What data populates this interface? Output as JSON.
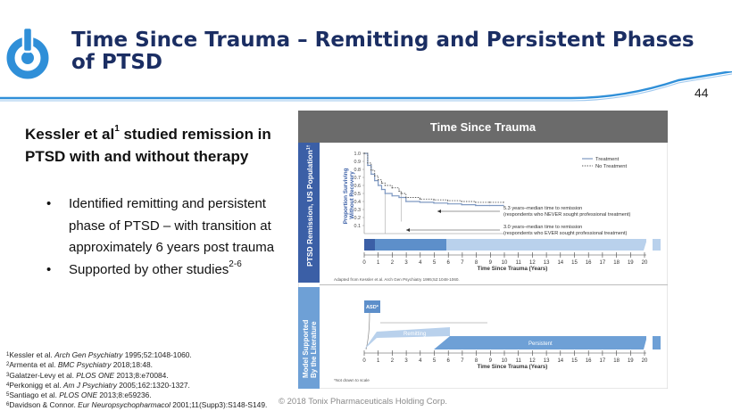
{
  "header": {
    "title": "Time Since Trauma – Remitting and Persistent Phases of PTSD",
    "page_number": "44"
  },
  "body": {
    "lead_parts": [
      "Kessler et al",
      "1",
      " studied remission in PTSD with and without therapy"
    ],
    "bullets": [
      {
        "text": "Identified remitting and persistent phase of PTSD – with transition at approximately 6 years post trauma",
        "sup": ""
      },
      {
        "text": "Supported by other studies",
        "sup": "2-6"
      }
    ]
  },
  "references": [
    {
      "n": "1",
      "pre": "Kessler et al. ",
      "journal": "Arch Gen Psychiatry",
      "post": " 1995;52:1048-1060."
    },
    {
      "n": "2",
      "pre": "Armenta et al. ",
      "journal": "BMC Psychiatry",
      "post": " 2018;18:48."
    },
    {
      "n": "3",
      "pre": "Galatzer-Levy et al. ",
      "journal": "PLOS ONE",
      "post": " 2013;8:e70084."
    },
    {
      "n": "4",
      "pre": "Perkonigg et al. ",
      "journal": "Am J Psychiatry",
      "post": " 2005;162:1320-1327."
    },
    {
      "n": "5",
      "pre": "Santiago et al. ",
      "journal": "PLOS ONE",
      "post": " 2013;8:e59236."
    },
    {
      "n": "6",
      "pre": "Davidson & Connor. ",
      "journal": "Eur Neuropsychopharmacol",
      "post": " 2001;11(Supp3):S148-S149."
    }
  ],
  "footer": "© 2018 Tonix Pharmaceuticals Holding Corp.",
  "figure": {
    "title": "Time Since Trauma",
    "panel_top_label": "PTSD Remission, US Population",
    "panel_top_sup": "1†",
    "panel_bottom_label": [
      "Model Supported",
      "By the Literature"
    ],
    "y_axis_label": [
      "Proportion Surviving",
      "Without Recovery"
    ],
    "x_axis_label": "Time Since Trauma (Years)",
    "adapted_note": "Adapted from Kessler et al. Arch Gen Psychiatry 1995;52:1048-1060.",
    "not_drawn_note": "*Not drawn to scale",
    "legend": [
      "Treatment",
      "No Treatment"
    ],
    "annotation_1": [
      "5.3 years–median time to remission",
      "(respondents who NEVER sought professional treatment)"
    ],
    "annotation_2": [
      "3.0 years–median time to remission",
      "(respondents who EVER sought professional treatment)"
    ],
    "asd_label": "ASD*",
    "remitting_label": "Remitting",
    "persistent_label": "Persistent",
    "colors": {
      "header_bar": "#6b6b6b",
      "panel_top": "#3b5fa6",
      "panel_bottom": "#6ea0d6",
      "treatment_line": "#7f99c2",
      "no_treatment_line": "#555555"
    }
  },
  "chart_data": {
    "type": "line",
    "xlabel": "Time Since Trauma (Years)",
    "ylabel": "Proportion Surviving Without Recovery",
    "xlim": [
      0,
      20
    ],
    "ylim": [
      0,
      1.0
    ],
    "x_ticks": [
      "0",
      "1",
      "2",
      "3",
      "4",
      "5",
      "6",
      "7",
      "8",
      "9",
      "10",
      "11",
      "12",
      "13",
      "14",
      "15",
      "16",
      "17",
      "18",
      "19",
      "20"
    ],
    "y_ticks": [
      "0.1",
      "0.2",
      "0.3",
      "0.4",
      "0.5",
      "0.6",
      "0.7",
      "0.8",
      "0.9",
      "1.0"
    ],
    "legend_position": "top-right",
    "series": [
      {
        "name": "Treatment",
        "x": [
          0,
          0.5,
          1,
          1.5,
          2,
          2.5,
          3,
          4,
          5,
          6,
          8,
          10,
          12,
          14,
          16,
          18,
          20
        ],
        "y": [
          1.0,
          0.85,
          0.74,
          0.66,
          0.6,
          0.55,
          0.5,
          0.47,
          0.45,
          0.4,
          0.39,
          0.38,
          0.37,
          0.36,
          0.35,
          0.35,
          0.35
        ]
      },
      {
        "name": "No Treatment",
        "x": [
          0,
          0.5,
          1,
          1.5,
          2,
          2.5,
          3,
          4,
          5,
          5.3,
          6,
          8,
          10,
          12,
          14,
          16,
          18,
          20
        ],
        "y": [
          1.0,
          0.88,
          0.79,
          0.72,
          0.67,
          0.63,
          0.6,
          0.57,
          0.53,
          0.5,
          0.45,
          0.43,
          0.42,
          0.41,
          0.4,
          0.39,
          0.39,
          0.39
        ]
      }
    ]
  }
}
